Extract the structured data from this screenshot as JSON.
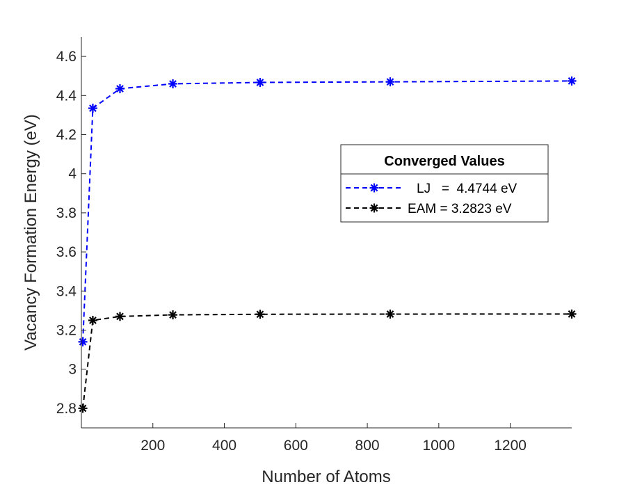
{
  "chart_data": {
    "type": "line",
    "xlabel": "Number of Atoms",
    "ylabel": "Vacancy Formation Energy (eV)",
    "xlim": [
      0,
      1372
    ],
    "ylim": [
      2.7,
      4.7
    ],
    "xticks": [
      200,
      400,
      600,
      800,
      1000,
      1200
    ],
    "yticks": [
      2.8,
      3,
      3.2,
      3.4,
      3.6,
      3.8,
      4,
      4.2,
      4.4,
      4.6
    ],
    "grid": false,
    "legend": {
      "title": "Converged Values",
      "placement": "right-middle",
      "entries": [
        "LJ   =  4.4744 eV",
        "EAM = 3.2823 eV"
      ]
    },
    "x": [
      4,
      32,
      108,
      256,
      500,
      864,
      1372
    ],
    "series": [
      {
        "name": "LJ",
        "color": "#0000ff",
        "marker": "asterisk",
        "line": "dashed",
        "values": [
          3.14,
          4.335,
          4.435,
          4.46,
          4.467,
          4.47,
          4.4744
        ]
      },
      {
        "name": "EAM",
        "color": "#000000",
        "marker": "asterisk",
        "line": "dashed",
        "values": [
          2.8,
          3.25,
          3.27,
          3.278,
          3.281,
          3.282,
          3.2823
        ]
      }
    ]
  }
}
